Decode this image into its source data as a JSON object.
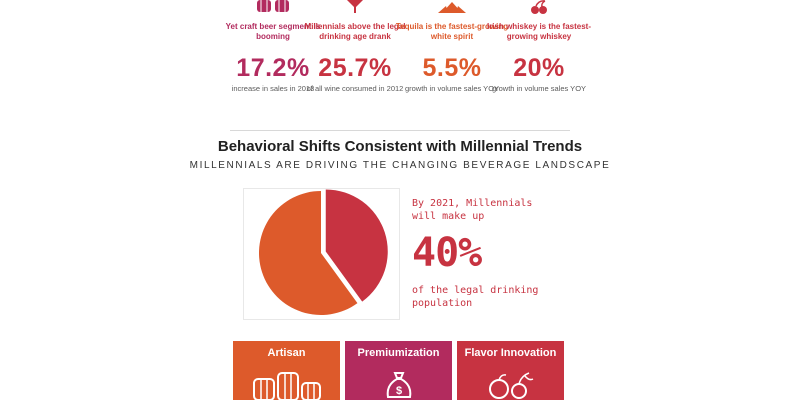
{
  "stats": [
    {
      "icon": "beer-barrels-icon",
      "color": "#b22b5e",
      "caption": "Yet craft beer segment is booming",
      "value": "17.2%",
      "desc": "increase in sales in 2013"
    },
    {
      "icon": "wine-glass-icon",
      "color": "#c73341",
      "caption": "Millennials above the legal drinking age drank",
      "value": "25.7%",
      "desc": "of all wine consumed in 2012"
    },
    {
      "icon": "agave-icon",
      "color": "#dd5a2b",
      "caption": "Tequila is the fastest-growing white spirit",
      "value": "5.5%",
      "desc": "growth in volume sales YOY"
    },
    {
      "icon": "cherries-icon",
      "color": "#c73341",
      "caption": "Irish whiskey is the fastest-growing whiskey",
      "value": "20%",
      "desc": "growth in volume sales YOY"
    }
  ],
  "section": {
    "title": "Behavioral Shifts Consistent with Millennial Trends",
    "subtitle": "MILLENNIALS ARE DRIVING THE CHANGING BEVERAGE LANDSCAPE"
  },
  "fact": {
    "pre": "By 2021, Millennials will make up",
    "value": "40%",
    "post": "of the legal drinking population"
  },
  "chart_data": {
    "type": "pie",
    "values": [
      40,
      60
    ],
    "colors": [
      "#c73341",
      "#dd5a2b"
    ]
  },
  "tiles": [
    {
      "label": "Artisan",
      "color": "#dd5a2b",
      "icon": "barrels-icon"
    },
    {
      "label": "Premiumization",
      "color": "#b22b5e",
      "icon": "money-bag-icon"
    },
    {
      "label": "Flavor Innovation",
      "color": "#c73341",
      "icon": "fruit-icon"
    }
  ]
}
